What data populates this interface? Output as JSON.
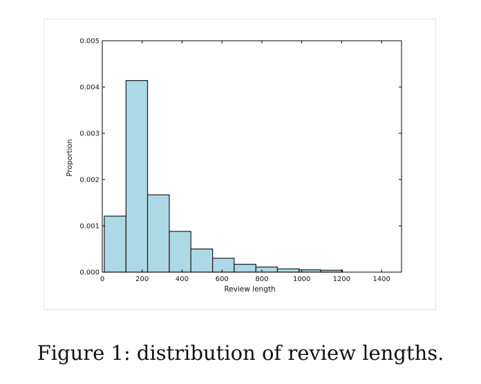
{
  "caption": "Figure 1: distribution of review lengths.",
  "chart_data": {
    "type": "bar",
    "histogram": true,
    "xlabel": "Review length",
    "ylabel": "Proportion",
    "xlim": [
      0,
      1500
    ],
    "ylim": [
      0,
      0.005
    ],
    "xticks": [
      0,
      200,
      400,
      600,
      800,
      1000,
      1200,
      1400
    ],
    "yticks": [
      0.0,
      0.001,
      0.002,
      0.003,
      0.004,
      0.005
    ],
    "ytick_labels": [
      "0.000",
      "0.001",
      "0.002",
      "0.003",
      "0.004",
      "0.005"
    ],
    "bin_edges": [
      10,
      119,
      227,
      336,
      444,
      553,
      661,
      770,
      878,
      987,
      1095,
      1204
    ],
    "values": [
      0.00121,
      0.00414,
      0.00167,
      0.00088,
      0.0005,
      0.0003,
      0.00017,
      0.00011,
      7e-05,
      5e-05,
      4e-05
    ],
    "grid": false,
    "colors": {
      "bar_fill": "#add8e6",
      "bar_edge": "#1a1a1a",
      "axis": "#000000"
    }
  }
}
